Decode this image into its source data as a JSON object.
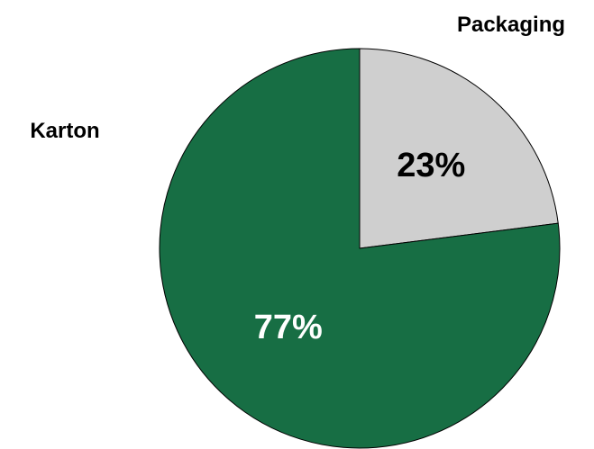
{
  "chart_data": {
    "type": "pie",
    "title": "",
    "slices": [
      {
        "label": "Packaging",
        "value": 23,
        "display": "23%",
        "color": "#cfcfcf",
        "label_color": "#000000"
      },
      {
        "label": "Karton",
        "value": 77,
        "display": "77%",
        "color": "#176e44",
        "label_color": "#ffffff"
      }
    ],
    "start_angle_deg": 0,
    "direction": "clockwise",
    "legend": "none",
    "slice_border_color": "#000000"
  }
}
